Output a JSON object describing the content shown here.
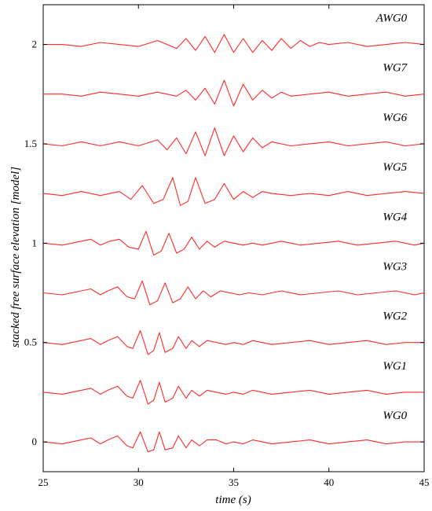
{
  "chart_data": {
    "type": "line",
    "xlabel": "time (s)",
    "ylabel": "stacked free surface elevation [model]",
    "xlim": [
      25,
      45
    ],
    "ylim": [
      -0.15,
      2.2
    ],
    "xticks": [
      25,
      30,
      35,
      40,
      45
    ],
    "yticks": [
      0,
      0.5,
      1,
      1.5,
      2
    ],
    "ytick_labels": [
      "0",
      "0.5",
      "1",
      "1.5",
      "2"
    ],
    "xtick_labels": [
      "25",
      "30",
      "35",
      "40",
      "45"
    ],
    "grid": false,
    "line_color": "#ff2a2a",
    "series": [
      {
        "name": "WG0",
        "offset": 0.0,
        "x": [
          25,
          26,
          27,
          27.5,
          28,
          28.4,
          28.9,
          29.4,
          29.7,
          30.1,
          30.5,
          30.8,
          31.1,
          31.4,
          31.8,
          32.1,
          32.5,
          32.8,
          33.2,
          33.6,
          34.1,
          34.6,
          35,
          35.5,
          36,
          37,
          38,
          39,
          40,
          41,
          42,
          43,
          44,
          45
        ],
        "y": [
          0,
          -0.01,
          0.01,
          0.02,
          -0.01,
          0.01,
          0.03,
          -0.02,
          -0.03,
          0.05,
          -0.05,
          -0.04,
          0.05,
          -0.04,
          -0.03,
          0.03,
          -0.03,
          0.01,
          -0.02,
          0.01,
          0.01,
          -0.01,
          0.0,
          -0.01,
          0.01,
          -0.01,
          0.0,
          0.01,
          -0.01,
          0.0,
          0.01,
          -0.01,
          0.0,
          0.0
        ]
      },
      {
        "name": "WG1",
        "offset": 0.25,
        "x": [
          25,
          26,
          27,
          27.5,
          28,
          28.4,
          28.9,
          29.4,
          29.7,
          30.1,
          30.5,
          30.8,
          31.1,
          31.4,
          31.8,
          32.1,
          32.5,
          32.8,
          33.2,
          33.6,
          34.1,
          34.6,
          35,
          35.5,
          36,
          37,
          38,
          39,
          40,
          41,
          42,
          43,
          44,
          45
        ],
        "y": [
          0.25,
          0.24,
          0.26,
          0.27,
          0.24,
          0.26,
          0.28,
          0.23,
          0.22,
          0.31,
          0.19,
          0.21,
          0.3,
          0.2,
          0.22,
          0.28,
          0.22,
          0.26,
          0.23,
          0.26,
          0.25,
          0.24,
          0.25,
          0.24,
          0.26,
          0.24,
          0.25,
          0.26,
          0.24,
          0.25,
          0.26,
          0.24,
          0.25,
          0.25
        ]
      },
      {
        "name": "WG2",
        "offset": 0.5,
        "x": [
          25,
          26,
          27,
          27.5,
          28,
          28.4,
          28.9,
          29.4,
          29.7,
          30.1,
          30.5,
          30.8,
          31.1,
          31.4,
          31.8,
          32.1,
          32.5,
          32.8,
          33.2,
          33.6,
          34.1,
          34.6,
          35,
          35.5,
          36,
          37,
          38,
          39,
          40,
          41,
          42,
          43,
          44,
          45
        ],
        "y": [
          0.5,
          0.49,
          0.51,
          0.52,
          0.49,
          0.51,
          0.53,
          0.48,
          0.47,
          0.56,
          0.44,
          0.46,
          0.55,
          0.45,
          0.47,
          0.53,
          0.47,
          0.51,
          0.48,
          0.51,
          0.5,
          0.49,
          0.5,
          0.49,
          0.51,
          0.49,
          0.5,
          0.51,
          0.49,
          0.5,
          0.51,
          0.49,
          0.5,
          0.5
        ]
      },
      {
        "name": "WG3",
        "offset": 0.75,
        "x": [
          25,
          26,
          27,
          27.5,
          28,
          28.4,
          28.9,
          29.4,
          29.8,
          30.2,
          30.6,
          31,
          31.4,
          31.8,
          32.2,
          32.6,
          33,
          33.4,
          33.8,
          34.3,
          34.8,
          35.3,
          35.8,
          36.5,
          37.5,
          38.5,
          39.5,
          40.5,
          41.5,
          42.5,
          43.5,
          44.5,
          45
        ],
        "y": [
          0.75,
          0.74,
          0.76,
          0.77,
          0.74,
          0.76,
          0.78,
          0.73,
          0.72,
          0.81,
          0.69,
          0.71,
          0.8,
          0.7,
          0.72,
          0.78,
          0.72,
          0.76,
          0.73,
          0.76,
          0.75,
          0.74,
          0.75,
          0.74,
          0.76,
          0.74,
          0.75,
          0.76,
          0.74,
          0.75,
          0.76,
          0.74,
          0.75
        ]
      },
      {
        "name": "WG4",
        "offset": 1.0,
        "x": [
          25,
          26,
          27,
          27.5,
          28,
          28.5,
          29,
          29.5,
          30,
          30.4,
          30.8,
          31.2,
          31.6,
          32,
          32.4,
          32.8,
          33.2,
          33.6,
          34,
          34.5,
          35,
          35.5,
          36,
          36.5,
          37.5,
          38.5,
          39.5,
          40.5,
          41.5,
          42.5,
          43.5,
          44.5,
          45
        ],
        "y": [
          1.0,
          0.99,
          1.01,
          1.02,
          0.99,
          1.01,
          1.02,
          0.98,
          0.97,
          1.06,
          0.94,
          0.96,
          1.05,
          0.95,
          0.97,
          1.03,
          0.97,
          1.01,
          0.98,
          1.01,
          1.0,
          0.99,
          1.0,
          0.99,
          1.01,
          0.99,
          1.0,
          1.01,
          0.99,
          1.0,
          1.01,
          0.99,
          1.0
        ]
      },
      {
        "name": "WG5",
        "offset": 1.25,
        "x": [
          25,
          26,
          27,
          28,
          29,
          29.6,
          30.2,
          30.8,
          31.3,
          31.8,
          32.2,
          32.6,
          33,
          33.5,
          34,
          34.5,
          35,
          35.5,
          36,
          36.5,
          37,
          38,
          39,
          40,
          41,
          42,
          43,
          44,
          45
        ],
        "y": [
          1.25,
          1.24,
          1.26,
          1.24,
          1.26,
          1.22,
          1.29,
          1.2,
          1.22,
          1.33,
          1.19,
          1.21,
          1.33,
          1.2,
          1.22,
          1.3,
          1.22,
          1.26,
          1.23,
          1.26,
          1.25,
          1.24,
          1.25,
          1.24,
          1.26,
          1.24,
          1.25,
          1.26,
          1.25
        ]
      },
      {
        "name": "WG6",
        "offset": 1.5,
        "x": [
          25,
          26,
          27,
          28,
          29,
          30,
          31,
          31.5,
          32,
          32.5,
          33,
          33.5,
          34,
          34.5,
          35,
          35.5,
          36,
          36.5,
          37,
          38,
          39,
          40,
          41,
          42,
          43,
          44,
          45
        ],
        "y": [
          1.5,
          1.49,
          1.51,
          1.49,
          1.51,
          1.49,
          1.52,
          1.47,
          1.53,
          1.45,
          1.56,
          1.44,
          1.58,
          1.44,
          1.54,
          1.46,
          1.53,
          1.48,
          1.51,
          1.49,
          1.5,
          1.51,
          1.49,
          1.5,
          1.51,
          1.49,
          1.5
        ]
      },
      {
        "name": "WG7",
        "offset": 1.75,
        "x": [
          25,
          26,
          27,
          28,
          29,
          30,
          31,
          32,
          32.5,
          33,
          33.5,
          34,
          34.5,
          35,
          35.5,
          36,
          36.5,
          37,
          37.5,
          38,
          39,
          40,
          41,
          42,
          43,
          44,
          45
        ],
        "y": [
          1.75,
          1.75,
          1.74,
          1.76,
          1.75,
          1.74,
          1.76,
          1.74,
          1.77,
          1.72,
          1.78,
          1.7,
          1.82,
          1.69,
          1.8,
          1.72,
          1.77,
          1.73,
          1.76,
          1.74,
          1.75,
          1.76,
          1.74,
          1.75,
          1.76,
          1.74,
          1.75
        ]
      },
      {
        "name": "AWG0",
        "offset": 2.0,
        "x": [
          25,
          26,
          27,
          28,
          29,
          30,
          31,
          32,
          32.5,
          33,
          33.5,
          34,
          34.5,
          35,
          35.5,
          36,
          36.5,
          37,
          37.5,
          38,
          38.5,
          39,
          39.5,
          40,
          41,
          42,
          43,
          44,
          45
        ],
        "y": [
          2.0,
          2.0,
          1.99,
          2.01,
          2.0,
          1.99,
          2.02,
          1.98,
          2.03,
          1.97,
          2.04,
          1.96,
          2.05,
          1.96,
          2.03,
          1.96,
          2.02,
          1.97,
          2.03,
          1.98,
          2.02,
          1.99,
          2.01,
          2.0,
          2.01,
          1.99,
          2.0,
          2.01,
          2.0
        ]
      }
    ]
  }
}
